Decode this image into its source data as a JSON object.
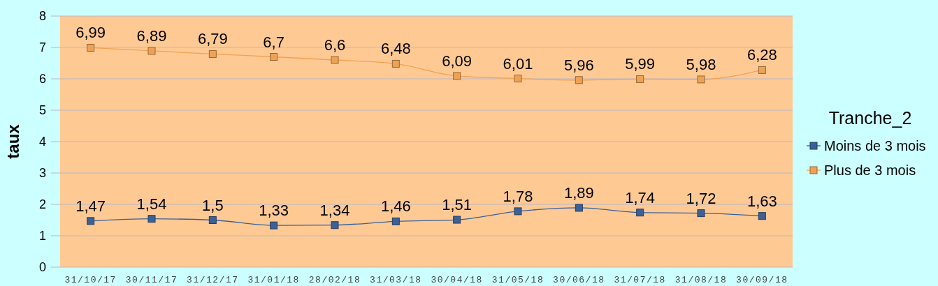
{
  "chart_data": {
    "type": "line",
    "ylabel": "taux",
    "legend_title": "Tranche_2",
    "categories": [
      "31/10/17",
      "30/11/17",
      "31/12/17",
      "31/01/18",
      "28/02/18",
      "31/03/18",
      "30/04/18",
      "31/05/18",
      "30/06/18",
      "31/07/18",
      "31/08/18",
      "30/09/18"
    ],
    "series": [
      {
        "name": "Moins de 3 mois",
        "color": "#3a6198",
        "values": [
          1.47,
          1.54,
          1.5,
          1.33,
          1.34,
          1.46,
          1.51,
          1.78,
          1.89,
          1.74,
          1.72,
          1.63
        ],
        "value_labels": [
          "1,47",
          "1,54",
          "1,5",
          "1,33",
          "1,34",
          "1,46",
          "1,51",
          "1,78",
          "1,89",
          "1,74",
          "1,72",
          "1,63"
        ]
      },
      {
        "name": "Plus de 3 mois",
        "color": "#f0a254",
        "values": [
          6.99,
          6.89,
          6.79,
          6.7,
          6.6,
          6.48,
          6.09,
          6.01,
          5.96,
          5.99,
          5.98,
          6.28
        ],
        "value_labels": [
          "6,99",
          "6,89",
          "6,79",
          "6,7",
          "6,6",
          "6,48",
          "6,09",
          "6,01",
          "5,96",
          "5,99",
          "5,98",
          "6,28"
        ]
      }
    ],
    "ylim": [
      0,
      8
    ],
    "yticks": [
      0,
      1,
      2,
      3,
      4,
      5,
      6,
      7,
      8
    ],
    "grid": "y",
    "legend": "right",
    "marker": "square"
  }
}
